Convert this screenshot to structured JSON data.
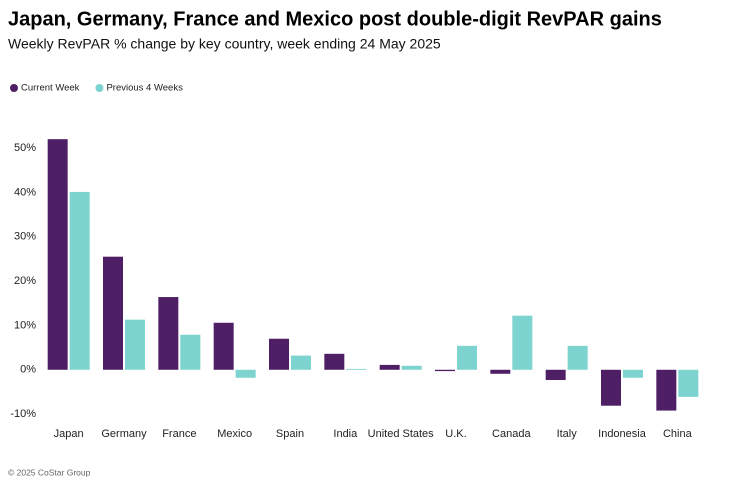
{
  "chart_data": {
    "type": "bar",
    "title": "Japan, Germany, France and Mexico post double-digit RevPAR gains",
    "subtitle": "Weekly RevPAR % change by key country, week ending 24 May 2025",
    "source": "© 2025 CoStar Group",
    "categories": [
      "Japan",
      "Germany",
      "France",
      "Mexico",
      "Spain",
      "India",
      "United States",
      "U.K.",
      "Canada",
      "Italy",
      "Indonesia",
      "China"
    ],
    "series": [
      {
        "name": "Current Week",
        "color": "#4f1f66",
        "values": [
          52.0,
          25.5,
          16.4,
          10.6,
          7.0,
          3.6,
          1.1,
          -0.3,
          -0.9,
          -2.3,
          -8.1,
          -9.2
        ]
      },
      {
        "name": "Previous 4 Weeks",
        "color": "#7dd3cf",
        "values": [
          40.1,
          11.3,
          7.9,
          -1.8,
          3.2,
          0.2,
          0.9,
          5.4,
          12.2,
          5.4,
          -1.8,
          -6.1
        ]
      }
    ],
    "ylim": [
      -12,
      57
    ],
    "yticks": [
      {
        "value": -10,
        "label": "-10%"
      },
      {
        "value": 0,
        "label": "0%"
      },
      {
        "value": 10,
        "label": "10%"
      },
      {
        "value": 20,
        "label": "20%"
      },
      {
        "value": 30,
        "label": "30%"
      },
      {
        "value": 40,
        "label": "40%"
      },
      {
        "value": 50,
        "label": "50%"
      }
    ],
    "grid": false,
    "legend": "top-left"
  }
}
